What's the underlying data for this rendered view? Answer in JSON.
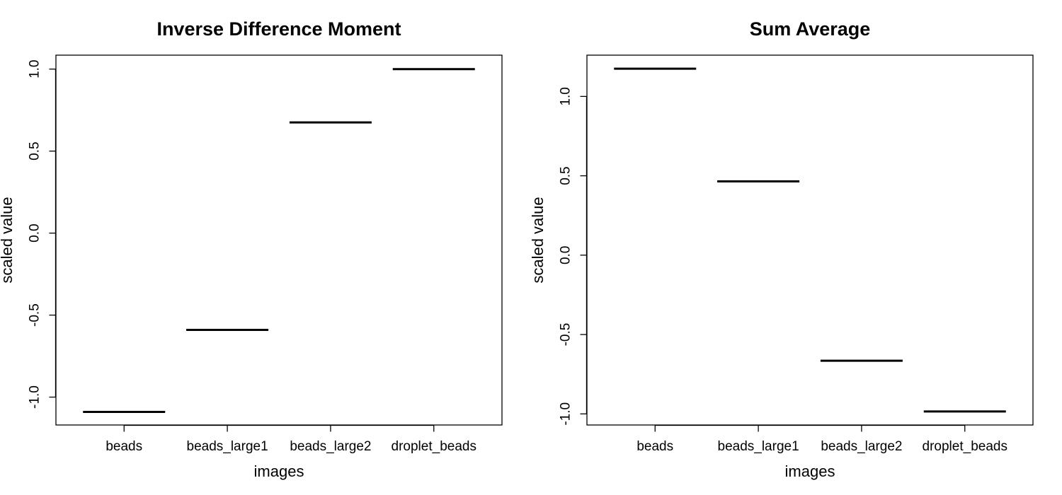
{
  "chart_data": [
    {
      "type": "line",
      "title": "Inverse Difference Moment",
      "xlabel": "images",
      "ylabel": "scaled value",
      "categories": [
        "beads",
        "beads_large1",
        "beads_large2",
        "droplet_beads"
      ],
      "values": [
        -1.09,
        -0.59,
        0.675,
        1.0
      ],
      "yticks": [
        "-1.0",
        "-0.5",
        "0.0",
        "0.5",
        "1.0"
      ],
      "ylim": [
        -1.17,
        1.085
      ],
      "grid": false,
      "legend": "none"
    },
    {
      "type": "line",
      "title": "Sum Average",
      "xlabel": "images",
      "ylabel": "scaled value",
      "categories": [
        "beads",
        "beads_large1",
        "beads_large2",
        "droplet_beads"
      ],
      "values": [
        1.175,
        0.465,
        -0.665,
        -0.985
      ],
      "yticks": [
        "-1.0",
        "-0.5",
        "0.0",
        "0.5",
        "1.0"
      ],
      "ylim": [
        -1.07,
        1.26
      ],
      "grid": false,
      "legend": "none"
    }
  ]
}
